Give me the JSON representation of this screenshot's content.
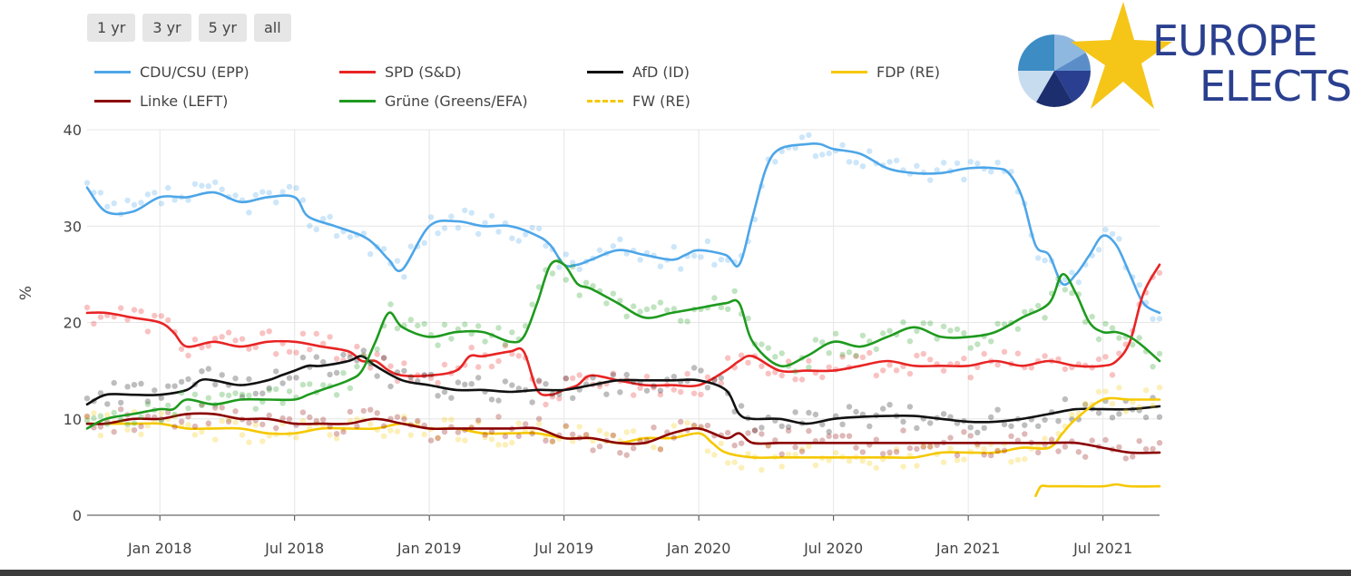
{
  "range_buttons": [
    "1 yr",
    "3 yr",
    "5 yr",
    "all"
  ],
  "logo": {
    "line1": "EUROPE",
    "line2": "ELECTS"
  },
  "colors": {
    "cdu": "#4da6e8",
    "spd": "#e82424",
    "afd": "#111111",
    "fdp": "#f5c800",
    "linke": "#8b0000",
    "gruene": "#1e9a1e",
    "fw": "#f5c800",
    "logo_blue": "#2a3f8f",
    "logo_star": "#f5c518"
  },
  "chart_data": {
    "type": "line",
    "ylabel": "%",
    "ylim": [
      0,
      40
    ],
    "yticks": [
      0,
      10,
      20,
      30,
      40
    ],
    "xlim": [
      2017.73,
      2021.71
    ],
    "xticks": [
      {
        "value": 2018.0,
        "label": "Jan 2018"
      },
      {
        "value": 2018.5,
        "label": "Jul 2018"
      },
      {
        "value": 2019.0,
        "label": "Jan 2019"
      },
      {
        "value": 2019.5,
        "label": "Jul 2019"
      },
      {
        "value": 2020.0,
        "label": "Jan 2020"
      },
      {
        "value": 2020.5,
        "label": "Jul 2020"
      },
      {
        "value": 2021.0,
        "label": "Jan 2021"
      },
      {
        "value": 2021.5,
        "label": "Jul 2021"
      }
    ],
    "grid": true,
    "legend_position": "top",
    "series": [
      {
        "name": "CDU/CSU (EPP)",
        "key": "cdu",
        "style": "solid",
        "x": [
          2017.73,
          2017.8,
          2017.9,
          2018.0,
          2018.1,
          2018.2,
          2018.3,
          2018.4,
          2018.5,
          2018.55,
          2018.65,
          2018.75,
          2018.8,
          2018.85,
          2018.9,
          2019.0,
          2019.1,
          2019.2,
          2019.3,
          2019.4,
          2019.45,
          2019.5,
          2019.55,
          2019.6,
          2019.7,
          2019.8,
          2019.9,
          2019.95,
          2020.0,
          2020.1,
          2020.15,
          2020.2,
          2020.25,
          2020.3,
          2020.4,
          2020.45,
          2020.5,
          2020.6,
          2020.7,
          2020.8,
          2020.9,
          2021.0,
          2021.1,
          2021.15,
          2021.2,
          2021.25,
          2021.3,
          2021.35,
          2021.4,
          2021.45,
          2021.5,
          2021.55,
          2021.6,
          2021.65,
          2021.71
        ],
        "y": [
          34,
          31.5,
          31.5,
          33,
          33,
          33.5,
          32.5,
          33,
          33,
          31,
          30,
          29,
          28,
          26.5,
          25.5,
          30,
          30.5,
          30,
          30,
          29,
          28,
          26,
          26,
          26.5,
          27.5,
          27,
          26.5,
          27,
          27.5,
          27,
          26,
          31,
          36,
          38,
          38.5,
          38.5,
          38,
          37.5,
          36,
          35.5,
          35.5,
          36,
          36,
          35.5,
          33,
          28,
          27,
          24,
          25,
          27,
          29,
          28,
          25,
          22,
          21
        ]
      },
      {
        "name": "SPD (S&D)",
        "key": "spd",
        "style": "solid",
        "x": [
          2017.73,
          2017.8,
          2017.9,
          2018.0,
          2018.05,
          2018.1,
          2018.2,
          2018.3,
          2018.4,
          2018.5,
          2018.6,
          2018.7,
          2018.75,
          2018.8,
          2018.85,
          2018.9,
          2019.0,
          2019.1,
          2019.15,
          2019.2,
          2019.3,
          2019.35,
          2019.4,
          2019.45,
          2019.5,
          2019.55,
          2019.6,
          2019.7,
          2019.8,
          2019.9,
          2020.0,
          2020.1,
          2020.15,
          2020.2,
          2020.3,
          2020.4,
          2020.5,
          2020.6,
          2020.7,
          2020.8,
          2020.9,
          2021.0,
          2021.1,
          2021.2,
          2021.3,
          2021.4,
          2021.5,
          2021.55,
          2021.6,
          2021.65,
          2021.71
        ],
        "y": [
          21,
          21,
          20.5,
          20,
          19,
          17.5,
          18,
          17.5,
          18,
          18,
          17.5,
          17,
          16,
          16,
          15,
          14.5,
          14.5,
          15,
          16.5,
          16.5,
          17,
          17,
          13,
          12.5,
          13,
          13.5,
          14.5,
          14,
          13.5,
          13.5,
          13.5,
          15,
          16,
          16.5,
          15,
          15,
          15,
          15.5,
          16,
          15.5,
          15.5,
          15.5,
          16,
          15.5,
          16,
          15.5,
          15.5,
          16,
          18,
          23,
          26
        ]
      },
      {
        "name": "AfD (ID)",
        "key": "afd",
        "style": "solid",
        "x": [
          2017.73,
          2017.8,
          2017.9,
          2018.0,
          2018.1,
          2018.15,
          2018.2,
          2018.3,
          2018.4,
          2018.45,
          2018.5,
          2018.55,
          2018.6,
          2018.7,
          2018.75,
          2018.8,
          2018.9,
          2019.0,
          2019.1,
          2019.2,
          2019.3,
          2019.4,
          2019.5,
          2019.6,
          2019.7,
          2019.8,
          2019.9,
          2020.0,
          2020.1,
          2020.15,
          2020.2,
          2020.3,
          2020.4,
          2020.5,
          2020.6,
          2020.7,
          2020.8,
          2020.9,
          2021.0,
          2021.1,
          2021.2,
          2021.3,
          2021.4,
          2021.5,
          2021.6,
          2021.71
        ],
        "y": [
          11.5,
          12.5,
          12.5,
          12.5,
          13,
          14,
          14,
          13.5,
          14,
          14.5,
          15,
          15.5,
          15.5,
          16,
          16.5,
          15.5,
          14,
          13.5,
          13,
          13,
          12.8,
          13,
          13,
          13.5,
          14,
          14,
          14,
          14,
          13,
          10.5,
          10,
          10,
          9.5,
          10,
          10.2,
          10.3,
          10.3,
          10,
          9.7,
          9.7,
          10,
          10.5,
          11,
          11,
          11,
          11.3
        ]
      },
      {
        "name": "FDP (RE)",
        "key": "fdp",
        "style": "solid",
        "x": [
          2017.73,
          2017.8,
          2017.9,
          2018.0,
          2018.1,
          2018.2,
          2018.3,
          2018.4,
          2018.5,
          2018.6,
          2018.7,
          2018.8,
          2018.9,
          2019.0,
          2019.1,
          2019.2,
          2019.3,
          2019.4,
          2019.5,
          2019.6,
          2019.7,
          2019.8,
          2019.9,
          2020.0,
          2020.05,
          2020.1,
          2020.2,
          2020.3,
          2020.4,
          2020.5,
          2020.6,
          2020.7,
          2020.8,
          2020.9,
          2021.0,
          2021.1,
          2021.2,
          2021.3,
          2021.35,
          2021.4,
          2021.5,
          2021.6,
          2021.71
        ],
        "y": [
          9.5,
          9.5,
          9.5,
          9.5,
          9,
          9,
          9,
          8.5,
          8.5,
          9,
          9,
          9,
          9.5,
          9,
          9,
          8.5,
          8.5,
          8.5,
          8,
          8,
          7.5,
          8,
          8,
          8.5,
          7.5,
          6.5,
          6,
          6,
          6,
          6,
          6,
          6,
          6,
          6.5,
          6.5,
          6.5,
          7,
          7,
          8.5,
          10,
          12,
          12,
          12
        ]
      },
      {
        "name": "Linke (LEFT)",
        "key": "linke",
        "style": "solid",
        "x": [
          2017.73,
          2017.8,
          2017.9,
          2018.0,
          2018.1,
          2018.2,
          2018.3,
          2018.4,
          2018.5,
          2018.6,
          2018.7,
          2018.8,
          2018.9,
          2019.0,
          2019.1,
          2019.2,
          2019.3,
          2019.4,
          2019.5,
          2019.6,
          2019.7,
          2019.8,
          2019.9,
          2020.0,
          2020.1,
          2020.15,
          2020.2,
          2020.3,
          2020.4,
          2020.5,
          2020.6,
          2020.7,
          2020.8,
          2020.9,
          2021.0,
          2021.1,
          2021.2,
          2021.3,
          2021.4,
          2021.5,
          2021.6,
          2021.71
        ],
        "y": [
          9.5,
          9.5,
          10,
          10,
          10.5,
          10.5,
          10,
          10,
          9.5,
          9.5,
          9.5,
          10,
          9.5,
          9,
          9,
          9,
          9,
          9,
          8,
          8,
          7.5,
          7.5,
          8.5,
          9,
          8,
          8.5,
          7.5,
          7.5,
          7.5,
          7.5,
          7.5,
          7.5,
          7.5,
          7.5,
          7.5,
          7.5,
          7.5,
          7.5,
          7.5,
          7,
          6.5,
          6.5
        ]
      },
      {
        "name": "Grüne (Greens/EFA)",
        "key": "gruene",
        "style": "solid",
        "x": [
          2017.73,
          2017.8,
          2017.9,
          2018.0,
          2018.05,
          2018.1,
          2018.2,
          2018.3,
          2018.4,
          2018.5,
          2018.55,
          2018.6,
          2018.7,
          2018.75,
          2018.8,
          2018.85,
          2018.9,
          2019.0,
          2019.1,
          2019.2,
          2019.3,
          2019.35,
          2019.4,
          2019.45,
          2019.5,
          2019.55,
          2019.6,
          2019.7,
          2019.8,
          2019.9,
          2020.0,
          2020.1,
          2020.15,
          2020.2,
          2020.3,
          2020.4,
          2020.5,
          2020.6,
          2020.7,
          2020.8,
          2020.9,
          2021.0,
          2021.1,
          2021.2,
          2021.3,
          2021.35,
          2021.4,
          2021.45,
          2021.5,
          2021.55,
          2021.6,
          2021.65,
          2021.71
        ],
        "y": [
          9,
          10,
          10.5,
          11,
          11,
          12,
          11.5,
          12,
          12,
          12,
          12.5,
          13,
          14,
          15,
          18,
          21,
          19.5,
          18.5,
          19,
          19,
          18,
          18.5,
          22,
          26,
          26,
          24,
          23.5,
          22,
          20.5,
          21,
          21.5,
          22,
          22,
          18,
          15.5,
          16.5,
          18,
          17.5,
          18.5,
          19.5,
          18.5,
          18.5,
          19,
          20.5,
          22,
          25,
          23,
          20,
          19,
          19,
          18.5,
          17.5,
          16
        ]
      },
      {
        "name": "FW (RE)",
        "key": "fw",
        "style": "dashed",
        "x": [
          2021.25,
          2021.27,
          2021.3,
          2021.4,
          2021.5,
          2021.55,
          2021.6,
          2021.71
        ],
        "y": [
          2,
          3,
          3,
          3,
          3,
          3.2,
          3,
          3
        ]
      }
    ]
  }
}
